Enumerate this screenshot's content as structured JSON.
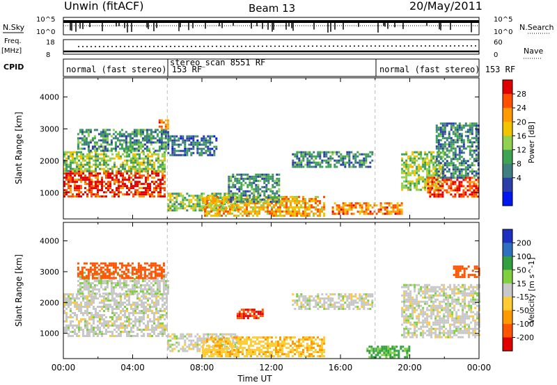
{
  "header": {
    "left": "Unwin (fitACF)",
    "center": "Beam 13",
    "right": "20/May/2011"
  },
  "left_labels": {
    "nsky": "N.Sky",
    "freq": "Freq.",
    "freq_unit": "[MHz]",
    "cpid": "CPID"
  },
  "right_labels": {
    "nsearch": "N.Search",
    "nave": "Nave"
  },
  "noise_panel": {
    "ticks_left": [
      "10^5",
      "10^0"
    ],
    "ticks_right": [
      "10^5",
      "10^0"
    ]
  },
  "freq_panel": {
    "ticks_left": [
      "18",
      "8"
    ],
    "ticks_right": [
      "60",
      "0"
    ]
  },
  "cpid_segments": [
    {
      "label": "normal (fast stereo) 153 RF",
      "start": "00:00",
      "end": "06:00"
    },
    {
      "label": "stereo_scan 8551 RF",
      "start": "06:00",
      "end": "18:00"
    },
    {
      "label": "normal (fast stereo) 153 RF",
      "start": "18:00",
      "end": "24:00"
    }
  ],
  "colors": {
    "power_scale": [
      "#0018f0",
      "#2c3fa8",
      "#3f7f7f",
      "#3ea353",
      "#92d050",
      "#f2c400",
      "#ff9a00",
      "#ff5000",
      "#e00000"
    ],
    "velocity_scale": [
      "#1f2fbf",
      "#2f6fbf",
      "#33a040",
      "#80d040",
      "#c8c8c8",
      "#ffcc33",
      "#ff9900",
      "#ff5500",
      "#e00000"
    ]
  },
  "chart_data": [
    {
      "type": "heatmap",
      "name": "Power",
      "xlabel": "",
      "ylabel": "Slant Range [km]",
      "xlim": [
        0,
        24
      ],
      "ylim": [
        180,
        4600
      ],
      "yticks": [
        1000,
        2000,
        3000,
        4000
      ],
      "colorbar": {
        "label": "Power [dB]",
        "ticks": [
          4,
          8,
          12,
          16,
          20,
          24,
          28
        ]
      },
      "regions": [
        {
          "t0": 0.0,
          "t1": 5.8,
          "r0": 900,
          "r1": 1700,
          "level": 26
        },
        {
          "t0": 0.0,
          "t1": 5.8,
          "r0": 1700,
          "r1": 2300,
          "level": 14
        },
        {
          "t0": 0.8,
          "t1": 6.0,
          "r0": 2300,
          "r1": 3000,
          "level": 10
        },
        {
          "t0": 5.5,
          "t1": 6.0,
          "r0": 3000,
          "r1": 3300,
          "level": 22
        },
        {
          "t0": 6.0,
          "t1": 8.8,
          "r0": 2200,
          "r1": 2800,
          "level": 8
        },
        {
          "t0": 6.0,
          "t1": 10.0,
          "r0": 450,
          "r1": 1000,
          "level": 14
        },
        {
          "t0": 8.0,
          "t1": 15.0,
          "r0": 250,
          "r1": 900,
          "level": 20
        },
        {
          "t0": 9.5,
          "t1": 12.5,
          "r0": 700,
          "r1": 1600,
          "level": 10
        },
        {
          "t0": 13.2,
          "t1": 17.8,
          "r0": 1800,
          "r1": 2300,
          "level": 9
        },
        {
          "t0": 15.5,
          "t1": 19.5,
          "r0": 350,
          "r1": 700,
          "level": 22
        },
        {
          "t0": 19.5,
          "t1": 22.0,
          "r0": 1100,
          "r1": 2300,
          "level": 15
        },
        {
          "t0": 21.0,
          "t1": 24.0,
          "r0": 900,
          "r1": 1500,
          "level": 26
        },
        {
          "t0": 21.5,
          "t1": 24.0,
          "r0": 1500,
          "r1": 3200,
          "level": 9
        }
      ]
    },
    {
      "type": "heatmap",
      "name": "Velocity",
      "xlabel": "Time UT",
      "ylabel": "Slant Range [km]",
      "xlim": [
        0,
        24
      ],
      "ylim": [
        180,
        4600
      ],
      "yticks": [
        1000,
        2000,
        3000,
        4000
      ],
      "xticks": [
        "00:00",
        "04:00",
        "08:00",
        "12:00",
        "16:00",
        "20:00",
        "00:00"
      ],
      "colorbar": {
        "label": "Velocity [m s^-1]",
        "ticks": [
          200,
          100,
          50,
          15,
          -15,
          -50,
          -100,
          -200
        ]
      },
      "regions": [
        {
          "t0": 0.0,
          "t1": 6.0,
          "r0": 900,
          "r1": 2300,
          "level": 0
        },
        {
          "t0": 0.8,
          "t1": 6.0,
          "r0": 2300,
          "r1": 3000,
          "level": 5
        },
        {
          "t0": 0.8,
          "t1": 5.8,
          "r0": 2800,
          "r1": 3300,
          "level": -120
        },
        {
          "t0": 6.0,
          "t1": 10.0,
          "r0": 450,
          "r1": 1000,
          "level": 0
        },
        {
          "t0": 8.0,
          "t1": 15.0,
          "r0": 250,
          "r1": 900,
          "level": -40
        },
        {
          "t0": 10.0,
          "t1": 11.5,
          "r0": 1500,
          "r1": 1800,
          "level": -200
        },
        {
          "t0": 13.2,
          "t1": 17.8,
          "r0": 1800,
          "r1": 2300,
          "level": 0
        },
        {
          "t0": 17.5,
          "t1": 20.0,
          "r0": 250,
          "r1": 600,
          "level": 60
        },
        {
          "t0": 19.5,
          "t1": 24.0,
          "r0": 900,
          "r1": 2600,
          "level": 0
        },
        {
          "t0": 22.5,
          "t1": 24.0,
          "r0": 2800,
          "r1": 3200,
          "level": -120
        }
      ]
    }
  ]
}
